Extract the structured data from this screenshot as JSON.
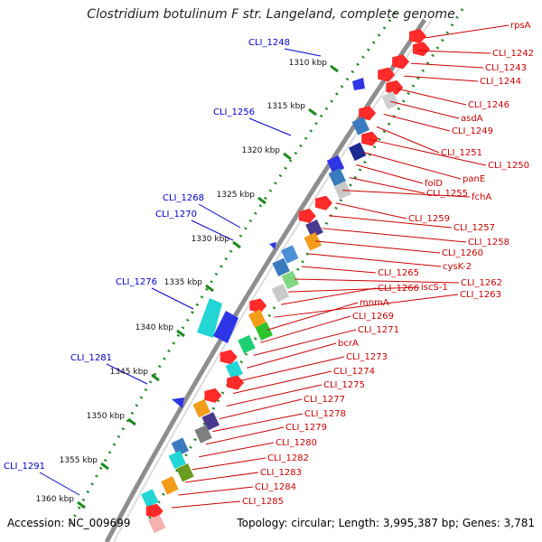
{
  "title": "Clostridium botulinum F str. Langeland, complete genome",
  "footer": {
    "accession": "Accession: NC_009699",
    "summary": "Topology: circular; Length: 3,995,387 bp; Genes: 3,781"
  },
  "colors": {
    "backbone": "#888888",
    "tick_dots": "#1f8a1f",
    "left_labels": "#0000cc",
    "right_labels": "#cc0000",
    "forward_gene": "#ff2a2a"
  },
  "kbp_ticks": [
    "1310 kbp",
    "1315 kbp",
    "1320 kbp",
    "1325 kbp",
    "1330 kbp",
    "1335 kbp",
    "1340 kbp",
    "1345 kbp",
    "1350 kbp",
    "1355 kbp",
    "1360 kbp"
  ],
  "left_labels": [
    "CLI_1248",
    "CLI_1256",
    "CLI_1268",
    "CLI_1270",
    "CLI_1276",
    "CLI_1281",
    "CLI_1291"
  ],
  "right_labels": [
    "rpsA",
    "CLI_1242",
    "CLI_1243",
    "CLI_1244",
    "CLI_1246",
    "asdA",
    "CLI_1249",
    "CLI_1251",
    "CLI_1250",
    "panE",
    "folD",
    "CLI_1255",
    "fchA",
    "CLI_1259",
    "CLI_1257",
    "CLI_1258",
    "CLI_1260",
    "cysK-2",
    "CLI_1265",
    "CLI_1262",
    "iscS-1",
    "CLI_1266",
    "CLI_1263",
    "mnmA",
    "CLI_1269",
    "CLI_1271",
    "bcrA",
    "CLI_1273",
    "CLI_1274",
    "CLI_1275",
    "CLI_1277",
    "CLI_1278",
    "CLI_1279",
    "CLI_1280",
    "CLI_1282",
    "CLI_1283",
    "CLI_1284",
    "CLI_1285"
  ]
}
